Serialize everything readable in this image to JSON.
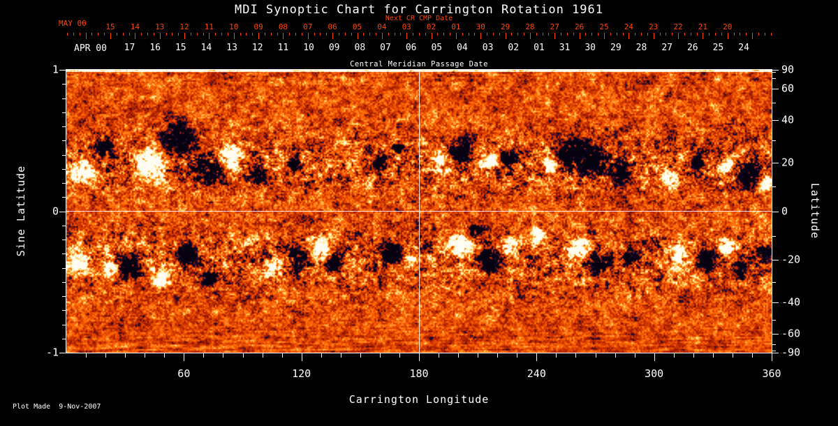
{
  "title": "MDI Synoptic Chart for Carrington Rotation 1961",
  "footer": "Plot Made  9-Nov-2007",
  "top_axis_next": {
    "label": "MAY 00",
    "sublabel": "Next CR CMP Date",
    "days": [
      "15",
      "14",
      "13",
      "12",
      "11",
      "10",
      "09",
      "08",
      "07",
      "06",
      "05",
      "04",
      "03",
      "02",
      "01",
      "30",
      "29",
      "28",
      "27",
      "26",
      "25",
      "24",
      "23",
      "22",
      "21",
      "20"
    ]
  },
  "top_axis_cmp": {
    "label": "APR 00",
    "sublabel": "Central Meridian Passage Date",
    "days": [
      "17",
      "16",
      "15",
      "14",
      "13",
      "12",
      "11",
      "10",
      "09",
      "08",
      "07",
      "06",
      "05",
      "04",
      "03",
      "02",
      "01",
      "31",
      "30",
      "29",
      "28",
      "27",
      "26",
      "25",
      "24"
    ]
  },
  "chart_data": {
    "type": "heatmap",
    "title": "MDI Synoptic Chart for Carrington Rotation 1961",
    "xlabel": "Carrington Longitude",
    "ylabel_left": "Sine Latitude",
    "ylabel_right": "Latitude",
    "x_range": [
      0,
      360
    ],
    "y_sine_range": [
      -1,
      1
    ],
    "x_major_ticks": [
      60,
      120,
      180,
      240,
      300,
      360
    ],
    "x_minor_step": 10,
    "left_tick_labels": [
      "1",
      "0",
      "-1"
    ],
    "right_tick_labels": [
      90,
      60,
      40,
      20,
      0,
      -20,
      -40,
      -60,
      -90
    ],
    "right_tick_minor_step_deg": 10,
    "grid": {
      "meridian_lon": 180,
      "equator_sinlat": 0
    },
    "palette": {
      "background": "#000000",
      "frame": "#ffffff",
      "date_axis_red": "#ff4400",
      "body": [
        "#7f1000",
        "#c83000",
        "#ff6400",
        "#ffa43c"
      ],
      "positive": "#ffd24d",
      "positive_strong": "#fffdf2",
      "negative": "#241040",
      "negative_strong": "#060210"
    },
    "active_region_format": [
      "lon_deg",
      "sine_lat",
      "radius_deg",
      "polarity"
    ],
    "active_regions": [
      [
        7,
        0.28,
        6,
        1
      ],
      [
        20,
        0.45,
        5,
        -1
      ],
      [
        43,
        0.34,
        8,
        1
      ],
      [
        57,
        0.5,
        9,
        -1
      ],
      [
        73,
        0.3,
        7,
        -1
      ],
      [
        84,
        0.38,
        6,
        1
      ],
      [
        98,
        0.25,
        4,
        -1
      ],
      [
        116,
        0.33,
        3,
        -1
      ],
      [
        160,
        0.33,
        4,
        -1
      ],
      [
        169,
        0.45,
        3,
        -1
      ],
      [
        192,
        0.35,
        5,
        1
      ],
      [
        201,
        0.43,
        6,
        -1
      ],
      [
        215,
        0.35,
        4,
        1
      ],
      [
        226,
        0.38,
        4,
        -1
      ],
      [
        247,
        0.32,
        4,
        1
      ],
      [
        258,
        0.42,
        8,
        -1
      ],
      [
        270,
        0.35,
        7,
        -1
      ],
      [
        283,
        0.28,
        5,
        -1
      ],
      [
        308,
        0.22,
        4,
        1
      ],
      [
        322,
        0.35,
        3,
        -1
      ],
      [
        337,
        0.32,
        4,
        1
      ],
      [
        349,
        0.25,
        6,
        -1
      ],
      [
        357,
        0.2,
        4,
        1
      ],
      [
        7,
        -0.35,
        5,
        1
      ],
      [
        23,
        -0.42,
        4,
        1
      ],
      [
        32,
        -0.4,
        6,
        -1
      ],
      [
        48,
        -0.47,
        5,
        1
      ],
      [
        62,
        -0.3,
        5,
        -1
      ],
      [
        73,
        -0.47,
        4,
        -1
      ],
      [
        105,
        -0.4,
        4,
        1
      ],
      [
        119,
        -0.32,
        6,
        -1
      ],
      [
        128,
        -0.27,
        6,
        1
      ],
      [
        137,
        -0.37,
        4,
        -1
      ],
      [
        166,
        -0.3,
        5,
        -1
      ],
      [
        176,
        -0.35,
        3,
        1
      ],
      [
        201,
        -0.22,
        6,
        1
      ],
      [
        208,
        -0.14,
        4,
        -1
      ],
      [
        215,
        -0.35,
        6,
        -1
      ],
      [
        226,
        -0.25,
        4,
        1
      ],
      [
        240,
        -0.17,
        4,
        1
      ],
      [
        262,
        -0.27,
        5,
        1
      ],
      [
        272,
        -0.37,
        6,
        -1
      ],
      [
        287,
        -0.32,
        4,
        -1
      ],
      [
        312,
        -0.32,
        5,
        1
      ],
      [
        326,
        -0.35,
        5,
        -1
      ],
      [
        337,
        -0.25,
        4,
        1
      ],
      [
        344,
        -0.4,
        4,
        -1
      ],
      [
        355,
        -0.3,
        4,
        -1
      ]
    ]
  }
}
